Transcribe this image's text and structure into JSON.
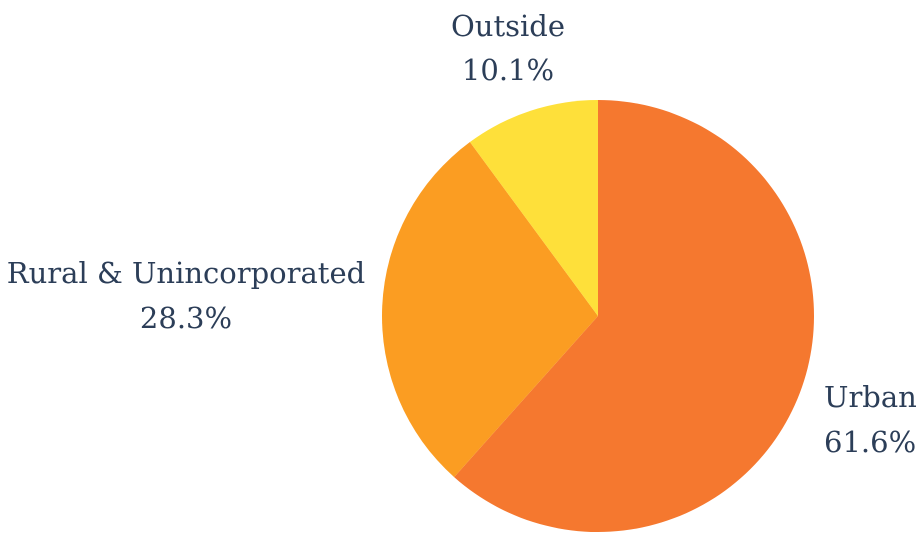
{
  "chart_data": {
    "type": "pie",
    "title": "",
    "start_angle_deg": 0,
    "direction": "clockwise",
    "slices": [
      {
        "label": "Urban",
        "value": 61.6,
        "value_label": "61.6%",
        "color": "#f5782f"
      },
      {
        "label": "Rural & Unincorporated",
        "value": 28.3,
        "value_label": "28.3%",
        "color": "#fb9d22"
      },
      {
        "label": "Outside",
        "value": 10.1,
        "value_label": "10.1%",
        "color": "#fee03a"
      }
    ],
    "legend": "none"
  }
}
